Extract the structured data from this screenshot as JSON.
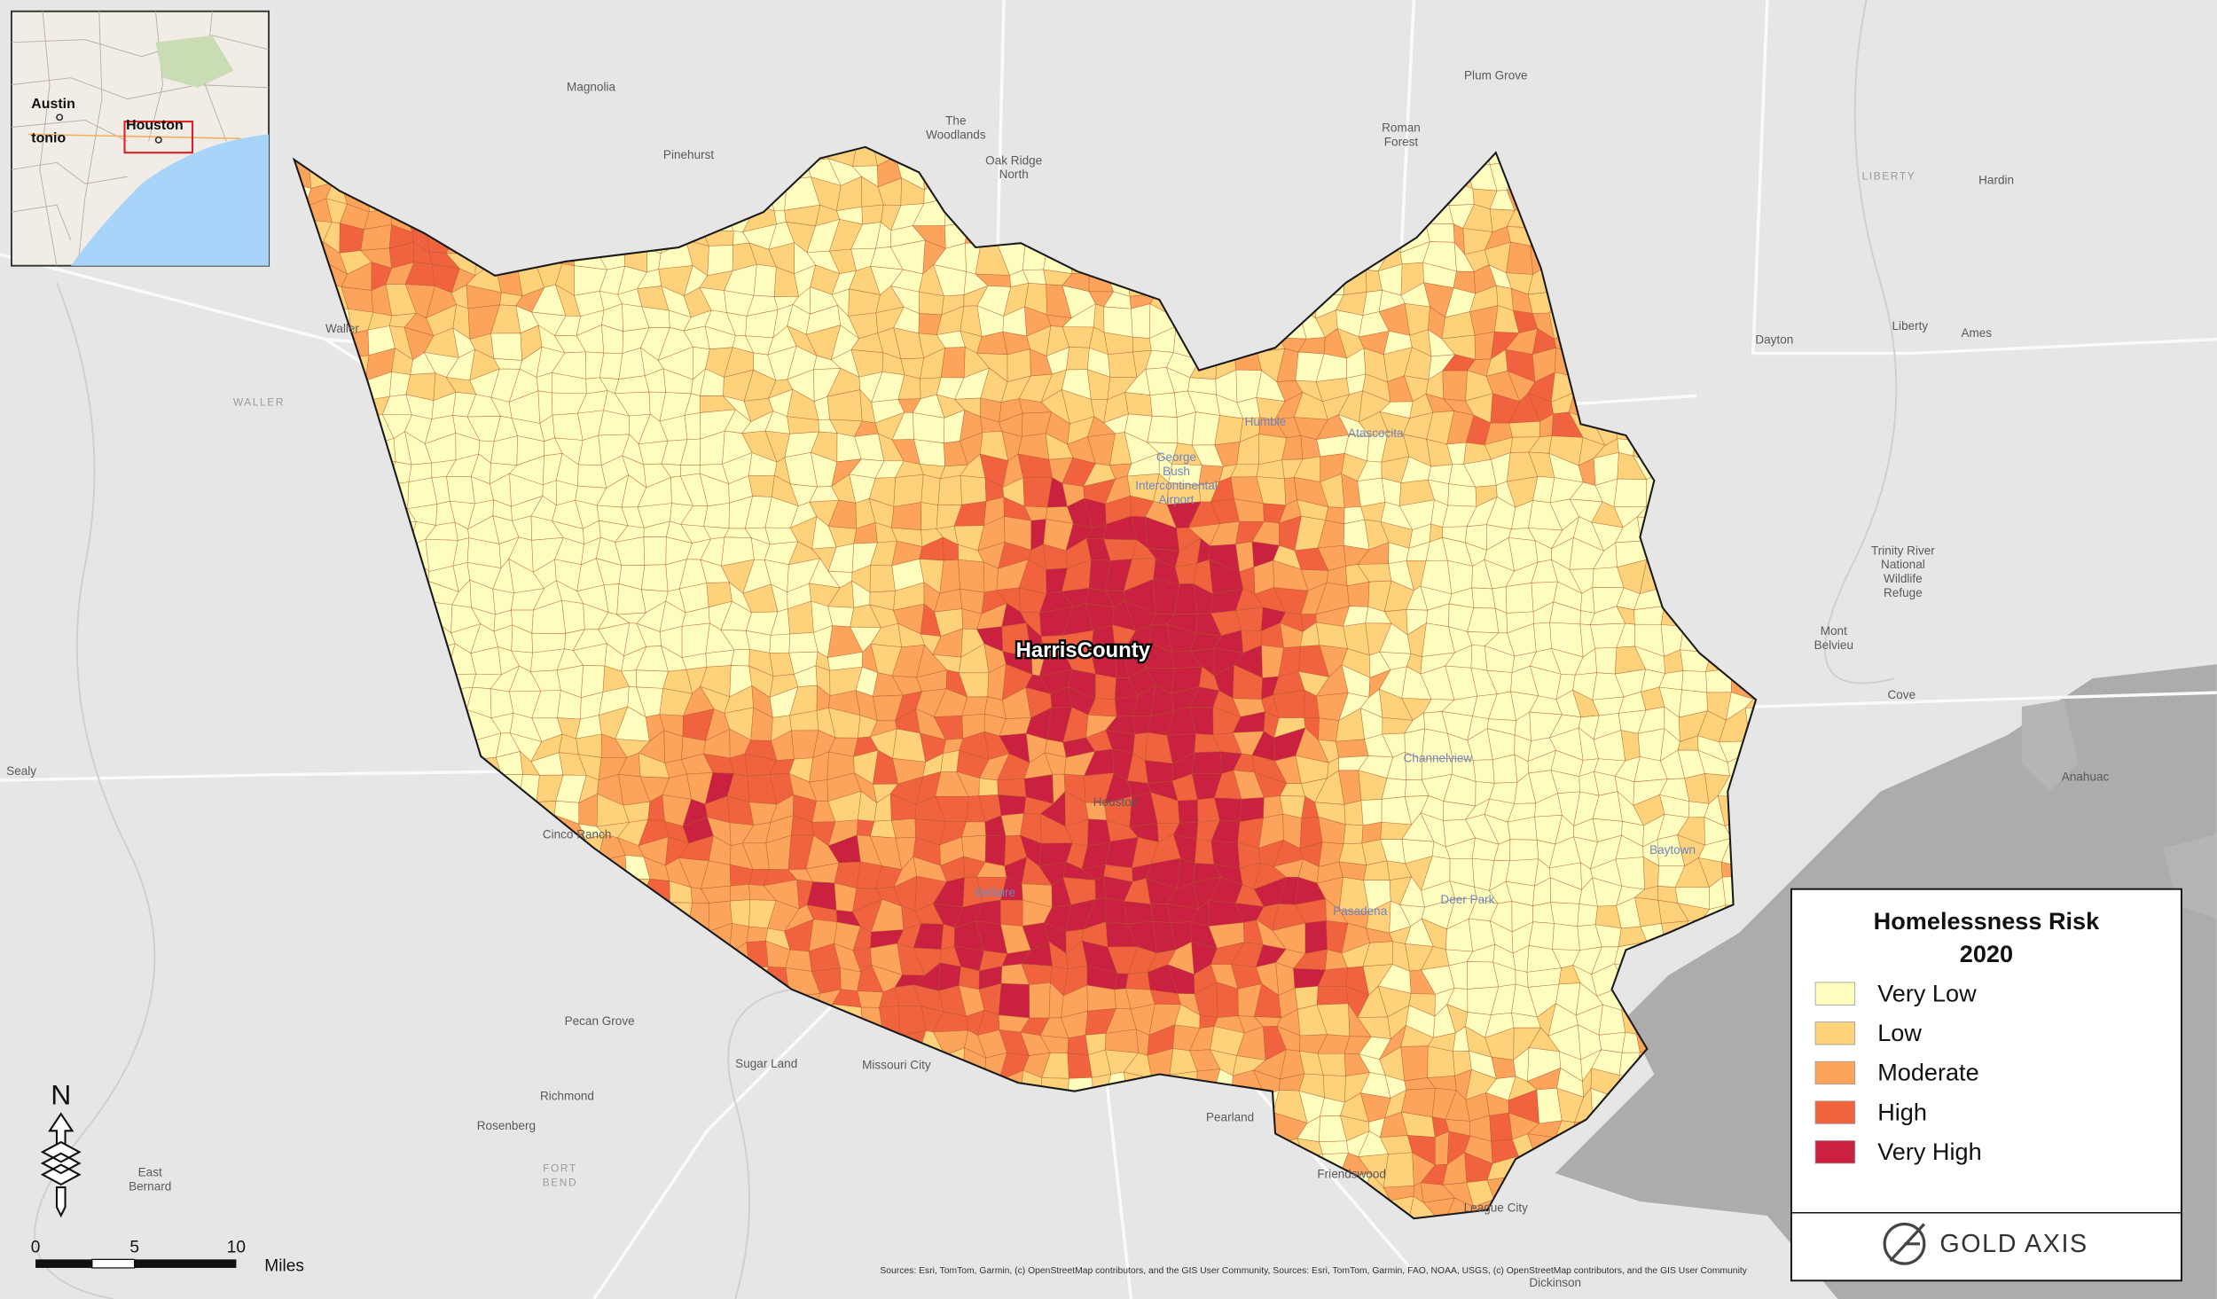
{
  "map": {
    "place_labels": [
      {
        "lines": [
          "Magnolia"
        ]
      },
      {
        "lines": [
          "The",
          "Woodlands"
        ]
      },
      {
        "lines": [
          "Oak Ridge",
          "North"
        ]
      },
      {
        "lines": [
          "Pinehurst"
        ]
      },
      {
        "lines": [
          "Plum Grove"
        ]
      },
      {
        "lines": [
          "Roman",
          "Forest"
        ]
      },
      {
        "lines": [
          "Hardin"
        ]
      },
      {
        "lines": [
          "LIBERTY"
        ]
      },
      {
        "lines": [
          "Dayton"
        ]
      },
      {
        "lines": [
          "Liberty"
        ]
      },
      {
        "lines": [
          "Ames"
        ]
      },
      {
        "lines": [
          "Waller"
        ]
      },
      {
        "lines": [
          "WALLER"
        ]
      },
      {
        "lines": [
          "Humble"
        ]
      },
      {
        "lines": [
          "Atascocita"
        ]
      },
      {
        "lines": [
          "George",
          "Bush",
          "Intercontinental",
          "Airport"
        ]
      },
      {
        "lines": [
          "Trinity River",
          "National",
          "Wildlife",
          "Refuge"
        ]
      },
      {
        "lines": [
          "Mont",
          "Belvieu"
        ]
      },
      {
        "lines": [
          "Cove"
        ]
      },
      {
        "lines": [
          "Sealy"
        ]
      },
      {
        "lines": [
          "Channelview"
        ]
      },
      {
        "lines": [
          "Anahuac"
        ]
      },
      {
        "lines": [
          "Houston"
        ]
      },
      {
        "lines": [
          "Cinco Ranch"
        ]
      },
      {
        "lines": [
          "Baytown"
        ]
      },
      {
        "lines": [
          "Bellaire"
        ]
      },
      {
        "lines": [
          "Deer Park"
        ]
      },
      {
        "lines": [
          "Pasadena"
        ]
      },
      {
        "lines": [
          "Pecan Grove"
        ]
      },
      {
        "lines": [
          "Sugar Land"
        ]
      },
      {
        "lines": [
          "Missouri City"
        ]
      },
      {
        "lines": [
          "Richmond"
        ]
      },
      {
        "lines": [
          "Rosenberg"
        ]
      },
      {
        "lines": [
          "Pearland"
        ]
      },
      {
        "lines": [
          "East",
          "Bernard"
        ]
      },
      {
        "lines": [
          "FORT",
          "BEND"
        ]
      },
      {
        "lines": [
          "Friendswood"
        ]
      },
      {
        "lines": [
          "League City"
        ]
      },
      {
        "lines": [
          "Dickinson"
        ]
      }
    ],
    "region_label": "HarrisCounty",
    "inset": {
      "labels": [
        "Austin",
        "tonio",
        "Houston"
      ]
    },
    "legend": {
      "title": [
        "Homelessness Risk",
        "2020"
      ],
      "items": [
        {
          "label": "Very Low",
          "color": "#fffdbd"
        },
        {
          "label": "Low",
          "color": "#fed27b"
        },
        {
          "label": "Moderate",
          "color": "#fca45b"
        },
        {
          "label": "High",
          "color": "#f1633f"
        },
        {
          "label": "Very High",
          "color": "#c9213f"
        }
      ]
    },
    "scale_bar": {
      "ticks": [
        0,
        5,
        10
      ],
      "unit": "Miles"
    },
    "north": "N",
    "brand": "GOLD AXIS",
    "attribution": "Sources: Esri, TomTom, Garmin, (c) OpenStreetMap contributors, and the GIS User Community, Sources: Esri, TomTom, Garmin, FAO, NOAA, USGS, (c) OpenStreetMap contributors, and the GIS User Community"
  }
}
